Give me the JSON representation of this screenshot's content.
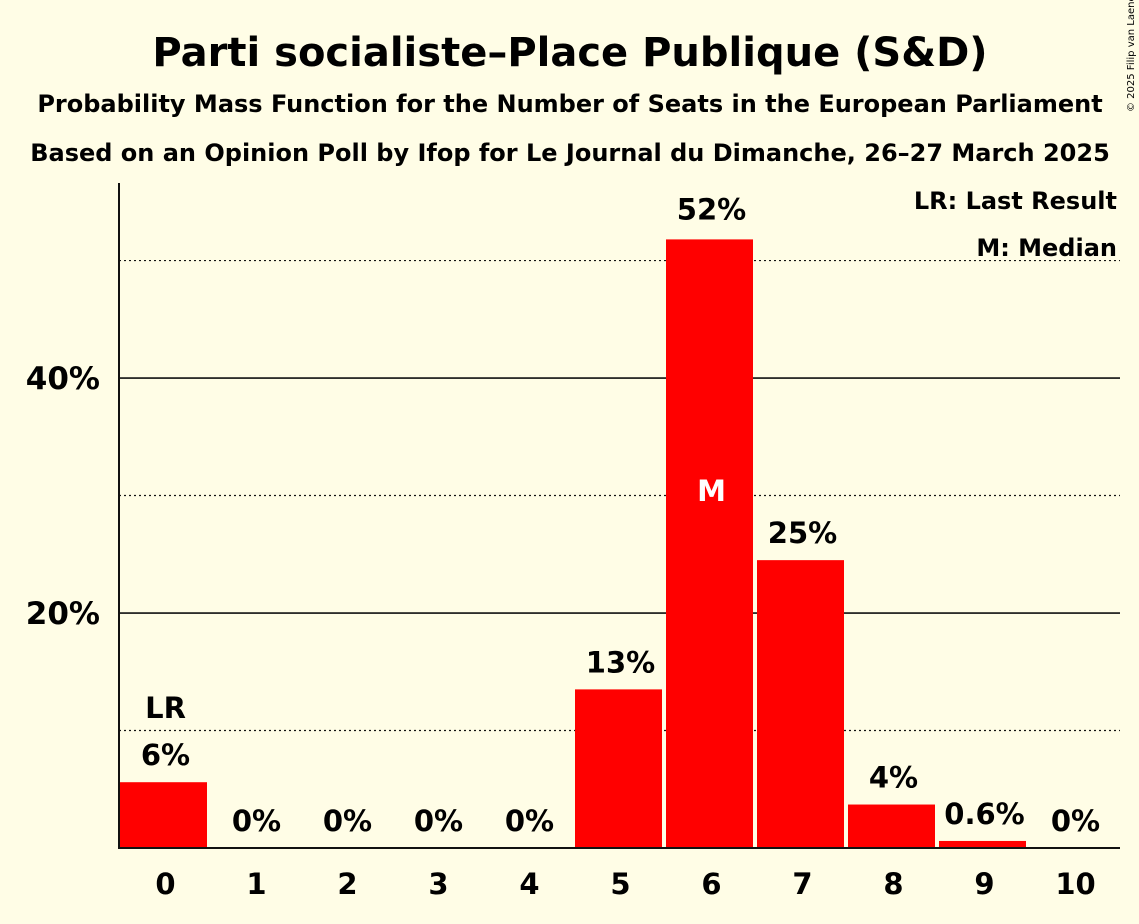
{
  "chart_data": {
    "type": "bar",
    "title": "Parti socialiste–Place Publique (S&D)",
    "subtitle": "Probability Mass Function for the Number of Seats in the European Parliament",
    "subtitle2": "Based on an Opinion Poll by Ifop for Le Journal du Dimanche, 26–27 March 2025",
    "categories": [
      "0",
      "1",
      "2",
      "3",
      "4",
      "5",
      "6",
      "7",
      "8",
      "9",
      "10"
    ],
    "values": [
      5.6,
      0,
      0,
      0,
      0,
      13.5,
      51.8,
      24.5,
      3.7,
      0.6,
      0
    ],
    "value_labels": [
      "6%",
      "0%",
      "0%",
      "0%",
      "0%",
      "13%",
      "52%",
      "25%",
      "4%",
      "0.6%",
      "0%"
    ],
    "ylim": [
      0,
      56.6
    ],
    "yticks": [
      20,
      40
    ],
    "ytick_labels": [
      "20%",
      "40%"
    ],
    "minor_gridlines": [
      10,
      30,
      50
    ],
    "last_result_index": 0,
    "median_index": 6,
    "last_result_marker": "LR",
    "median_marker": "M",
    "legend": [
      "LR: Last Result",
      "M: Median"
    ],
    "legend_position": "top-right",
    "bar_color": "#FF0000",
    "copyright": "© 2025 Filip van Laenen"
  }
}
